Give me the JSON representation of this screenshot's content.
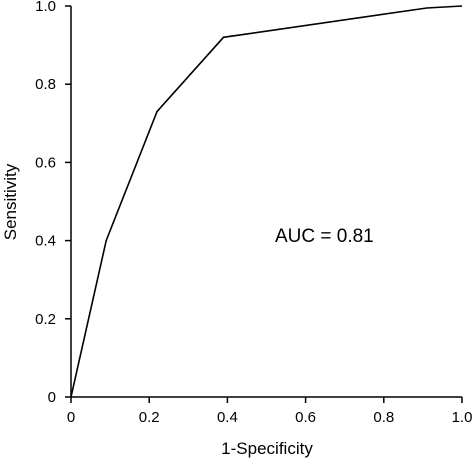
{
  "chart_data": {
    "type": "line",
    "title": "",
    "xlabel": "1-Specificity",
    "ylabel": "Sensitivity",
    "xlim": [
      0,
      1
    ],
    "ylim": [
      0,
      1
    ],
    "xticks": [
      "0",
      "0.2",
      "0.4",
      "0.6",
      "0.8",
      "1.0"
    ],
    "yticks": [
      "0",
      "0.2",
      "0.4",
      "0.6",
      "0.8",
      "1.0"
    ],
    "grid": false,
    "legend": "none",
    "annotation": "AUC = 0.81",
    "series": [
      {
        "x": [
          0.0,
          0.09,
          0.22,
          0.39,
          0.91,
          1.0
        ],
        "y": [
          0.0,
          0.4,
          0.73,
          0.92,
          0.995,
          1.0
        ]
      }
    ]
  },
  "colors": {
    "line": "#000000",
    "axis": "#000000",
    "background": "#ffffff"
  }
}
